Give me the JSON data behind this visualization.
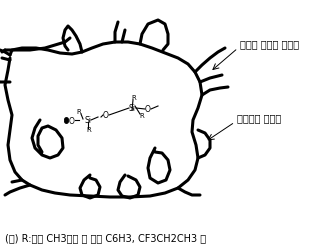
{
  "background_color": "#ffffff",
  "annotation_chain": "실리콘 고무의 분자쇄",
  "annotation_crosslink": "분자쇄의 가교점",
  "footnote": "(주) R:주로 CH3이고 그 외에 C6H3, CF3CH2CH3 등",
  "text_color": "#000000",
  "figure_width": 3.32,
  "figure_height": 2.49,
  "dpi": 100,
  "lw_main": 2.2,
  "lw_chem": 0.8,
  "fs_chem": 5.5,
  "fs_annot": 7.0,
  "fs_foot": 7.0
}
